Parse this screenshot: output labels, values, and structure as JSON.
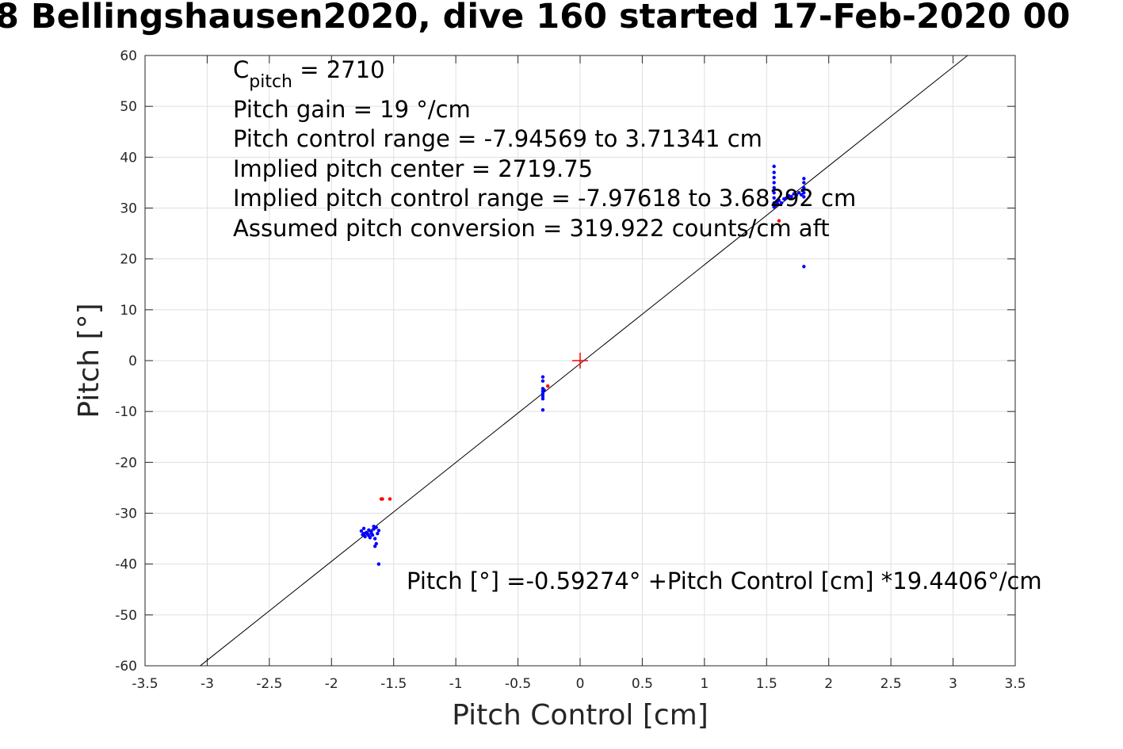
{
  "chart_data": {
    "type": "scatter",
    "title": "8 Bellingshausen2020, dive 160 started 17-Feb-2020 00",
    "xlabel": "Pitch Control [cm]",
    "ylabel": "Pitch [°]",
    "xlim": [
      -3.5,
      3.5
    ],
    "ylim": [
      -60,
      60
    ],
    "xticks": [
      -3.5,
      -3,
      -2.5,
      -2,
      -1.5,
      -1,
      -0.5,
      0,
      0.5,
      1,
      1.5,
      2,
      2.5,
      3,
      3.5
    ],
    "xtick_labels": [
      "-3.5",
      "-3",
      "-2.5",
      "-2",
      "-1.5",
      "-1",
      "-0.5",
      "0",
      "0.5",
      "1",
      "1.5",
      "2",
      "2.5",
      "3",
      "3.5"
    ],
    "yticks": [
      -60,
      -50,
      -40,
      -30,
      -20,
      -10,
      0,
      10,
      20,
      30,
      40,
      50,
      60
    ],
    "ytick_labels": [
      "-60",
      "-50",
      "-40",
      "-30",
      "-20",
      "-10",
      "0",
      "10",
      "20",
      "30",
      "40",
      "50",
      "60"
    ],
    "grid": true,
    "annotations": {
      "c_pitch_main": "C",
      "c_pitch_sub": "pitch",
      "c_pitch_value": " = 2710",
      "lines": [
        "Pitch gain = 19 °/cm",
        "Pitch control range = -7.94569 to 3.71341 cm",
        "Implied pitch center = 2719.75",
        "Implied pitch control range = -7.97618 to 3.68292 cm",
        "Assumed pitch conversion = 319.922 counts/cm aft"
      ],
      "fit_equation": "Pitch [°] =-0.59274° +Pitch Control [cm] *19.4406°/cm"
    },
    "fit": {
      "intercept": -0.59274,
      "slope": 19.4406,
      "color": "#000000"
    },
    "center_marker": {
      "x": 0,
      "y": 0,
      "color": "#ff0000"
    },
    "series": [
      {
        "color": "#0000ff",
        "points": [
          [
            -1.76,
            -33.5
          ],
          [
            -1.75,
            -34.2
          ],
          [
            -1.74,
            -33.0
          ],
          [
            -1.73,
            -34.6
          ],
          [
            -1.72,
            -33.8
          ],
          [
            -1.71,
            -34.1
          ],
          [
            -1.7,
            -33.3
          ],
          [
            -1.69,
            -34.8
          ],
          [
            -1.68,
            -33.6
          ],
          [
            -1.67,
            -34.3
          ],
          [
            -1.66,
            -33.1
          ],
          [
            -1.65,
            -35.0
          ],
          [
            -1.64,
            -32.8
          ],
          [
            -1.63,
            -34.0
          ],
          [
            -1.62,
            -33.4
          ],
          [
            -1.65,
            -36.5
          ],
          [
            -1.64,
            -36.0
          ],
          [
            -1.62,
            -40.0
          ],
          [
            -1.68,
            -33.9
          ],
          [
            -1.7,
            -34.4
          ],
          [
            -1.74,
            -34.0
          ],
          [
            -1.66,
            -32.6
          ],
          [
            -0.3,
            -3.2
          ],
          [
            -0.3,
            -4.0
          ],
          [
            -0.3,
            -5.5
          ],
          [
            -0.3,
            -6.0
          ],
          [
            -0.3,
            -6.5
          ],
          [
            -0.3,
            -7.0
          ],
          [
            -0.3,
            -7.5
          ],
          [
            -0.3,
            -9.7
          ],
          [
            -0.29,
            -5.8
          ],
          [
            1.56,
            38.2
          ],
          [
            1.56,
            37.0
          ],
          [
            1.56,
            36.0
          ],
          [
            1.56,
            35.0
          ],
          [
            1.56,
            34.0
          ],
          [
            1.56,
            33.0
          ],
          [
            1.56,
            32.0
          ],
          [
            1.56,
            31.0
          ],
          [
            1.56,
            30.2
          ],
          [
            1.57,
            30.5
          ],
          [
            1.58,
            31.2
          ],
          [
            1.59,
            30.8
          ],
          [
            1.6,
            31.5
          ],
          [
            1.62,
            31.0
          ],
          [
            1.64,
            31.8
          ],
          [
            1.66,
            32.0
          ],
          [
            1.68,
            32.4
          ],
          [
            1.7,
            32.2
          ],
          [
            1.72,
            32.8
          ],
          [
            1.74,
            32.5
          ],
          [
            1.76,
            33.0
          ],
          [
            1.78,
            32.6
          ],
          [
            1.8,
            35.8
          ],
          [
            1.8,
            35.0
          ],
          [
            1.8,
            34.0
          ],
          [
            1.8,
            33.0
          ],
          [
            1.8,
            32.2
          ],
          [
            1.79,
            33.5
          ],
          [
            1.8,
            18.5
          ]
        ]
      },
      {
        "color": "#ff0000",
        "points": [
          [
            -1.6,
            -27.2
          ],
          [
            -1.59,
            -27.2
          ],
          [
            -1.53,
            -27.2
          ],
          [
            -0.26,
            -5.0
          ],
          [
            1.6,
            27.5
          ]
        ]
      }
    ]
  }
}
